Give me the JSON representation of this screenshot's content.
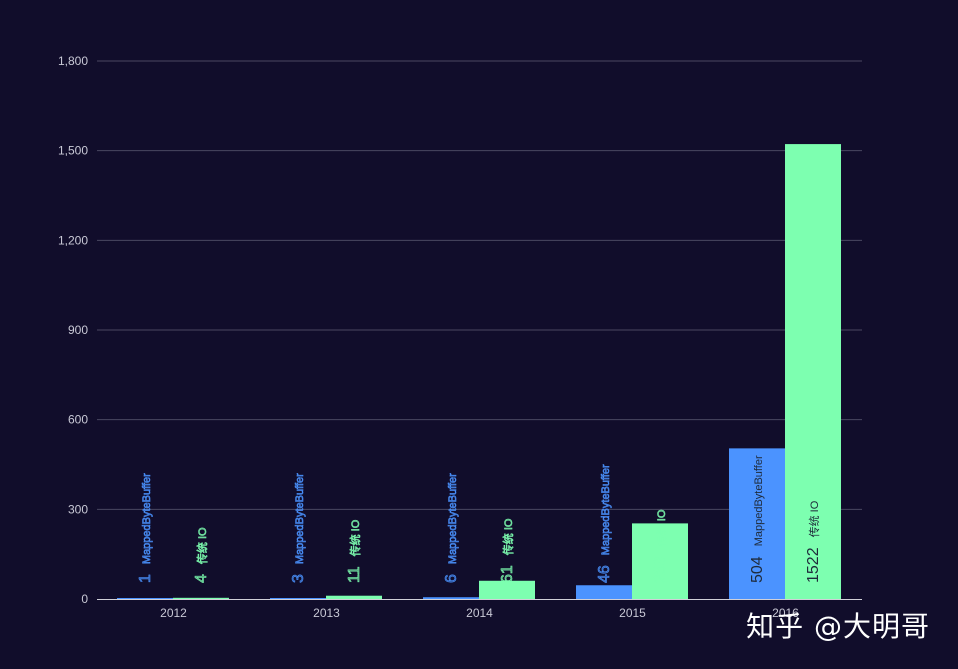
{
  "chart_data": {
    "type": "bar",
    "categories": [
      "2012",
      "2013",
      "2014",
      "2015",
      "2016"
    ],
    "series": [
      {
        "name": "MappedByteBuffer",
        "values": [
          1,
          3,
          6,
          46,
          504
        ],
        "color": "#4b93ff"
      },
      {
        "name": "传统 IO",
        "values": [
          4,
          11,
          61,
          253,
          1522
        ],
        "color": "#7dffb0"
      }
    ],
    "yticks": [
      0,
      300,
      600,
      900,
      1200,
      1500,
      1800
    ],
    "ytick_labels": [
      "0",
      "300",
      "600",
      "900",
      "1,200",
      "1,500",
      "1,800"
    ],
    "ylim": [
      0,
      1800
    ],
    "grid": true,
    "legend": "none",
    "title": "",
    "xlabel": "",
    "ylabel": ""
  },
  "watermark": "知乎 @大明哥",
  "colors": {
    "background": "#110d2b",
    "grid": "#4a4862",
    "tick_text": "#c9c9d6"
  }
}
